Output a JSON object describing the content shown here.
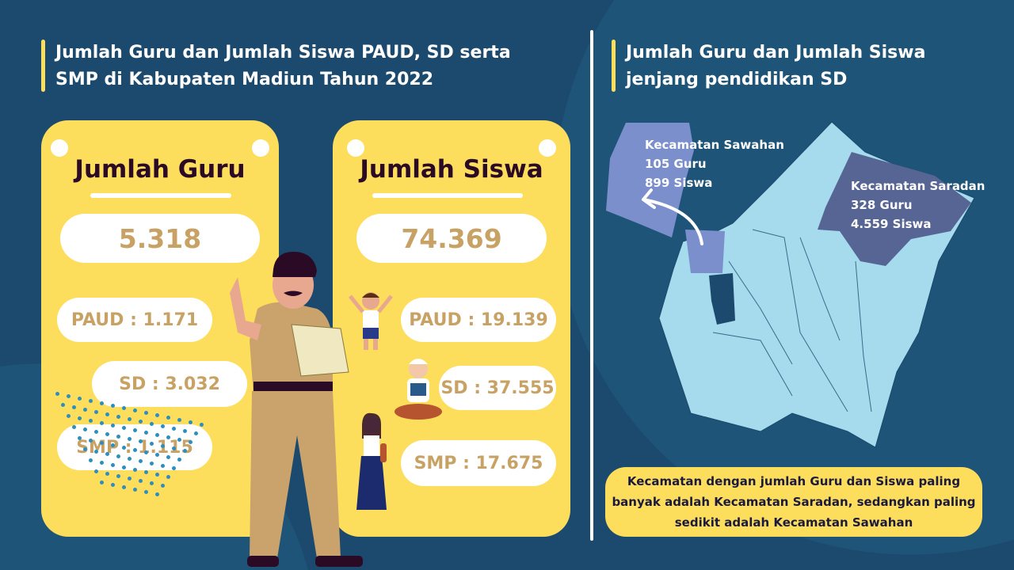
{
  "left": {
    "title_line1": "Jumlah Guru dan Jumlah Siswa PAUD, SD serta",
    "title_line2": "SMP di Kabupaten Madiun Tahun 2022",
    "guru": {
      "heading": "Jumlah Guru",
      "total": "5.318",
      "paud": "PAUD : 1.171",
      "sd": "SD : 3.032",
      "smp": "SMP : 1.115"
    },
    "siswa": {
      "heading": "Jumlah Siswa",
      "total": "74.369",
      "paud": "PAUD : 19.139",
      "sd": "SD : 37.555",
      "smp": "SMP : 17.675"
    }
  },
  "right": {
    "title_line1": "Jumlah Guru dan Jumlah Siswa",
    "title_line2": "jenjang pendidikan SD",
    "sawahan": {
      "name": "Kecamatan Sawahan",
      "guru": "105 Guru",
      "siswa": "899 Siswa"
    },
    "saradan": {
      "name": "Kecamatan Saradan",
      "guru": "328 Guru",
      "siswa": "4.559 Siswa"
    },
    "note": "Kecamatan dengan jumlah Guru dan Siswa paling banyak adalah Kecamatan Saradan, sedangkan paling sedikit adalah Kecamatan Sawahan"
  },
  "colors": {
    "background": "#1c4a6e",
    "card": "#fddd5c",
    "number": "#c8a265",
    "map": "#a5dbec",
    "sawahan": "#7b8fcc",
    "saradan": "#566593"
  }
}
